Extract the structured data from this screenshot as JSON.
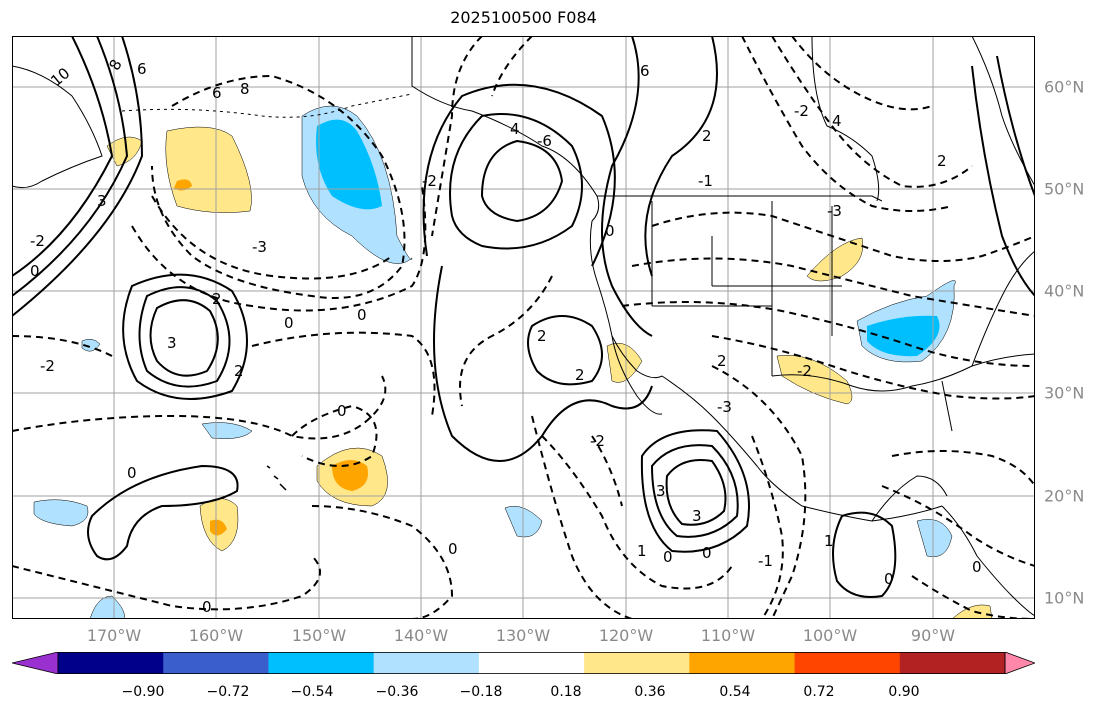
{
  "title": "2025100500 F084",
  "longitude_labels": [
    "170°W",
    "160°W",
    "150°W",
    "140°W",
    "130°W",
    "120°W",
    "110°W",
    "100°W",
    "90°W"
  ],
  "latitude_labels": [
    "60°N",
    "50°N",
    "40°N",
    "30°N",
    "20°N",
    "10°N"
  ],
  "colorbar": {
    "tick_labels": [
      "−0.90",
      "−0.72",
      "−0.54",
      "−0.36",
      "−0.18",
      "0.18",
      "0.36",
      "0.54",
      "0.72",
      "0.90"
    ],
    "colors": [
      "#9b30d0",
      "#00008b",
      "#3a5fcd",
      "#00bfff",
      "#b0e2ff",
      "#ffffff",
      "#ffe78a",
      "#ffa500",
      "#ff4500",
      "#b22222",
      "#ff88aa"
    ]
  },
  "contour_labels": [
    "10",
    "8",
    "6",
    "4",
    "2",
    "0",
    "-2",
    "-3",
    "3",
    "-1",
    "1",
    "-6",
    "6"
  ],
  "colors": {
    "land_outline": "#000000",
    "grid": "#a0a0a0",
    "contour": "#000000"
  }
}
